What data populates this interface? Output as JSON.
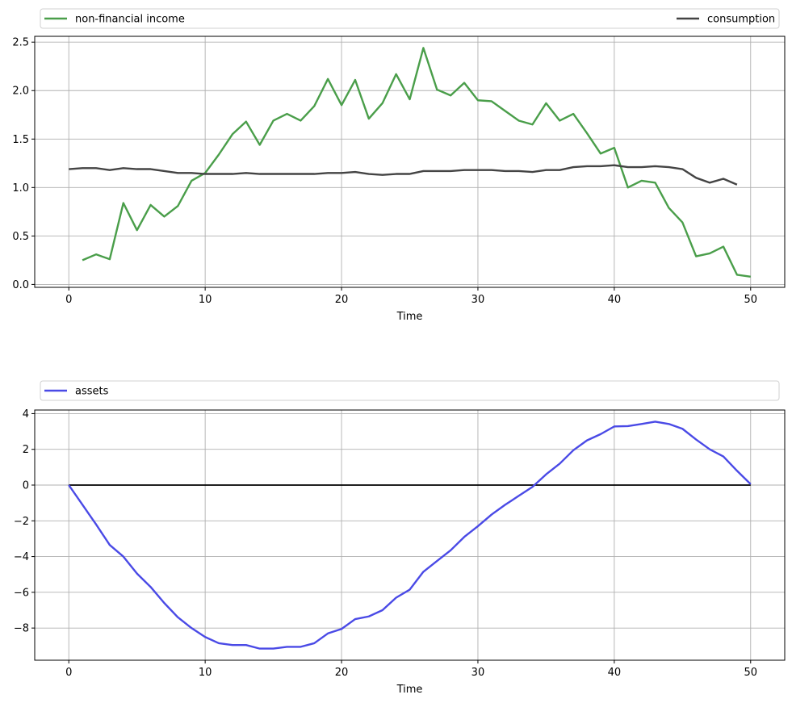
{
  "chart_data": [
    {
      "type": "line",
      "xlabel": "Time",
      "ylabel": "",
      "xlim": [
        -2.5,
        52.5
      ],
      "ylim": [
        -0.03,
        2.56
      ],
      "xticks": [
        0,
        10,
        20,
        30,
        40,
        50
      ],
      "yticks": [
        0.0,
        0.5,
        1.0,
        1.5,
        2.0,
        2.5
      ],
      "ytick_labels": [
        "0.0",
        "0.5",
        "1.0",
        "1.5",
        "2.0",
        "2.5"
      ],
      "grid": true,
      "legend_placement": "top-outside-expanded",
      "series": [
        {
          "name": "non-financial income",
          "color": "#4a9e4a",
          "x": [
            1,
            2,
            3,
            4,
            5,
            6,
            7,
            8,
            9,
            10,
            11,
            12,
            13,
            14,
            15,
            16,
            17,
            18,
            19,
            20,
            21,
            22,
            23,
            24,
            25,
            26,
            27,
            28,
            29,
            30,
            31,
            32,
            33,
            34,
            35,
            36,
            37,
            38,
            39,
            40,
            41,
            42,
            43,
            44,
            45,
            46,
            47,
            48,
            49,
            50
          ],
          "values": [
            0.25,
            0.31,
            0.26,
            0.84,
            0.56,
            0.82,
            0.7,
            0.81,
            1.07,
            1.15,
            1.34,
            1.55,
            1.68,
            1.44,
            1.69,
            1.76,
            1.69,
            1.84,
            2.12,
            1.85,
            2.11,
            1.71,
            1.87,
            2.17,
            1.91,
            2.44,
            2.01,
            1.95,
            2.08,
            1.9,
            1.89,
            1.79,
            1.69,
            1.65,
            1.87,
            1.69,
            1.76,
            1.56,
            1.35,
            1.41,
            1.0,
            1.07,
            1.05,
            0.79,
            0.64,
            0.29,
            0.32,
            0.39,
            0.1,
            0.08
          ]
        },
        {
          "name": "consumption",
          "color": "#444444",
          "x": [
            0,
            1,
            2,
            3,
            4,
            5,
            6,
            7,
            8,
            9,
            10,
            11,
            12,
            13,
            14,
            15,
            16,
            17,
            18,
            19,
            20,
            21,
            22,
            23,
            24,
            25,
            26,
            27,
            28,
            29,
            30,
            31,
            32,
            33,
            34,
            35,
            36,
            37,
            38,
            39,
            40,
            41,
            42,
            43,
            44,
            45,
            46,
            47,
            48,
            49
          ],
          "values": [
            1.19,
            1.2,
            1.2,
            1.18,
            1.2,
            1.19,
            1.19,
            1.17,
            1.15,
            1.15,
            1.14,
            1.14,
            1.14,
            1.15,
            1.14,
            1.14,
            1.14,
            1.14,
            1.14,
            1.15,
            1.15,
            1.16,
            1.14,
            1.13,
            1.14,
            1.14,
            1.17,
            1.17,
            1.17,
            1.18,
            1.18,
            1.18,
            1.17,
            1.17,
            1.16,
            1.18,
            1.18,
            1.21,
            1.22,
            1.22,
            1.23,
            1.21,
            1.21,
            1.22,
            1.21,
            1.19,
            1.1,
            1.05,
            1.09,
            1.03
          ]
        }
      ]
    },
    {
      "type": "line",
      "xlabel": "Time",
      "ylabel": "",
      "xlim": [
        -2.5,
        52.5
      ],
      "ylim": [
        -9.8,
        4.2
      ],
      "xticks": [
        0,
        10,
        20,
        30,
        40,
        50
      ],
      "yticks": [
        -8,
        -6,
        -4,
        -2,
        0,
        2,
        4
      ],
      "ytick_labels": [
        "−8",
        "−6",
        "−4",
        "−2",
        "0",
        "2",
        "4"
      ],
      "grid": true,
      "legend_placement": "top-outside-expanded",
      "zero_line_color": "#000000",
      "series": [
        {
          "name": "assets",
          "color": "#4a4ae6",
          "x": [
            0,
            1,
            2,
            3,
            4,
            5,
            6,
            7,
            8,
            9,
            10,
            11,
            12,
            13,
            14,
            15,
            16,
            17,
            18,
            19,
            20,
            21,
            22,
            23,
            24,
            25,
            26,
            27,
            28,
            29,
            30,
            31,
            32,
            33,
            34,
            35,
            36,
            37,
            38,
            39,
            40,
            41,
            42,
            43,
            44,
            45,
            46,
            47,
            48,
            49,
            50
          ],
          "values": [
            0.0,
            -1.1,
            -2.2,
            -3.35,
            -4.0,
            -4.95,
            -5.7,
            -6.6,
            -7.4,
            -8.0,
            -8.5,
            -8.85,
            -8.95,
            -8.95,
            -9.15,
            -9.15,
            -9.05,
            -9.05,
            -8.85,
            -8.3,
            -8.05,
            -7.5,
            -7.35,
            -7.0,
            -6.3,
            -5.85,
            -4.85,
            -4.25,
            -3.65,
            -2.9,
            -2.3,
            -1.65,
            -1.1,
            -0.6,
            -0.1,
            0.6,
            1.2,
            1.95,
            2.5,
            2.85,
            3.28,
            3.3,
            3.42,
            3.55,
            3.42,
            3.15,
            2.55,
            2.0,
            1.6,
            0.8,
            0.05
          ]
        }
      ]
    }
  ]
}
